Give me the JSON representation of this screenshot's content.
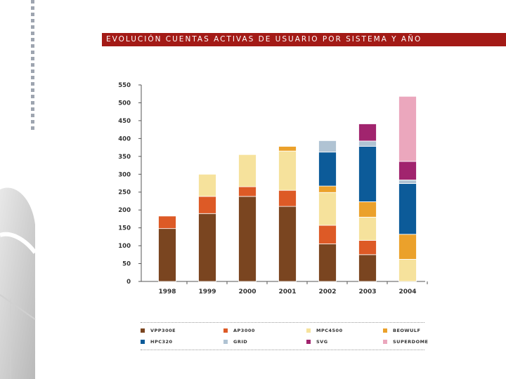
{
  "title": "EVOLUCIÓN CUENTAS ACTIVAS DE USUARIO POR SISTEMA Y AÑO",
  "chart_data": {
    "type": "bar",
    "stacked": true,
    "title": "EVOLUCIÓN CUENTAS ACTIVAS DE USUARIO POR SISTEMA Y AÑO",
    "xlabel": "",
    "ylabel": "",
    "ylim": [
      0,
      550
    ],
    "yticks": [
      "0",
      "50",
      "100",
      "150",
      "200",
      "250",
      "300",
      "350",
      "400",
      "450",
      "500",
      "550"
    ],
    "categories": [
      "1998",
      "1999",
      "2000",
      "2001",
      "2002",
      "2003",
      "2004"
    ],
    "series": [
      {
        "name": "VPP300E",
        "color": "#7a4520",
        "values": [
          148,
          190,
          238,
          210,
          105,
          75,
          0
        ]
      },
      {
        "name": "AP3000",
        "color": "#dd5a26",
        "values": [
          35,
          48,
          27,
          45,
          52,
          40,
          0
        ]
      },
      {
        "name": "MPC4500",
        "color": "#f6e29c",
        "values": [
          0,
          62,
          90,
          110,
          92,
          65,
          62
        ]
      },
      {
        "name": "BEOWULF",
        "color": "#eba12b",
        "values": [
          0,
          0,
          0,
          13,
          18,
          43,
          70
        ]
      },
      {
        "name": "HPC320",
        "color": "#0c5b99",
        "values": [
          0,
          0,
          0,
          0,
          95,
          155,
          142
        ]
      },
      {
        "name": "GRID",
        "color": "#b0c3d3",
        "values": [
          0,
          0,
          0,
          0,
          32,
          15,
          10
        ]
      },
      {
        "name": "SVG",
        "color": "#a1246e",
        "values": [
          0,
          0,
          0,
          0,
          0,
          48,
          52
        ]
      },
      {
        "name": "SUPERDOME",
        "color": "#eba7bd",
        "values": [
          0,
          0,
          0,
          0,
          0,
          0,
          182
        ]
      }
    ],
    "legend_position": "bottom",
    "grid": false
  }
}
